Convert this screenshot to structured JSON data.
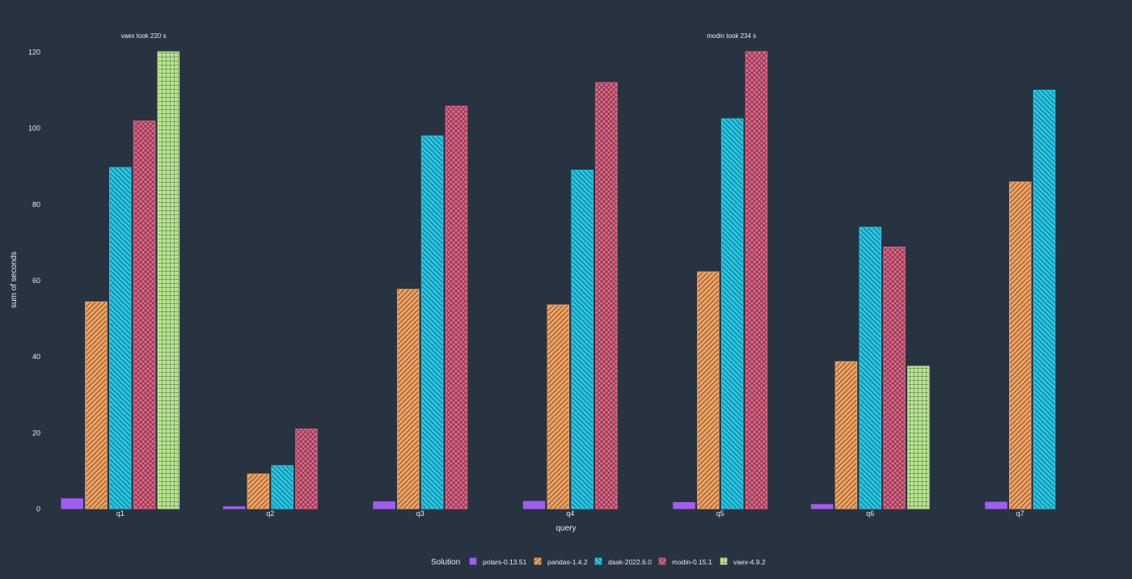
{
  "colors": {
    "background": "#283341",
    "text": "#eaeaea",
    "polars": "#a25cf0",
    "pandas": "#f5a05a",
    "dask": "#22c8e6",
    "modin": "#ef5e80",
    "vaex": "#b7e68a"
  },
  "chart_data": {
    "type": "bar",
    "title": "",
    "xlabel": "query",
    "ylabel": "sum of seconds",
    "ylim": [
      0,
      120
    ],
    "yticks": [
      0,
      20,
      40,
      60,
      80,
      100,
      120
    ],
    "grid": false,
    "categories": [
      "q1",
      "q2",
      "q3",
      "q4",
      "q5",
      "q6",
      "q7"
    ],
    "series": [
      {
        "name": "polars-0.13.51",
        "color": "#a25cf0",
        "pattern": "solid",
        "values": [
          2.6,
          0.5,
          1.8,
          1.9,
          1.6,
          1.1,
          1.7
        ]
      },
      {
        "name": "pandas-1.4.2",
        "color": "#f5a05a",
        "pattern": "diagonal-up",
        "values": [
          54.3,
          9.1,
          57.6,
          53.5,
          62.2,
          38.6,
          85.8
        ]
      },
      {
        "name": "dask-2022.6.0",
        "color": "#22c8e6",
        "pattern": "diagonal-down",
        "values": [
          89.6,
          11.3,
          97.9,
          88.9,
          102.4,
          73.9,
          109.9
        ]
      },
      {
        "name": "modin-0.15.1",
        "color": "#ef5e80",
        "pattern": "crosshatch",
        "values": [
          101.8,
          20.9,
          105.7,
          111.9,
          120,
          68.7,
          null
        ]
      },
      {
        "name": "vaex-4.9.2",
        "color": "#b7e68a",
        "pattern": "grid",
        "values": [
          120,
          null,
          null,
          null,
          null,
          37.4,
          null
        ]
      }
    ],
    "annotations": [
      {
        "text": "vaex took 220 s",
        "category": "q1"
      },
      {
        "text": "modin took 234 s",
        "category": "q5"
      }
    ],
    "legend": {
      "title": "Solution",
      "position": "bottom",
      "items": [
        "polars-0.13.51",
        "pandas-1.4.2",
        "dask-2022.6.0",
        "modin-0.15.1",
        "vaex-4.9.2"
      ]
    }
  }
}
